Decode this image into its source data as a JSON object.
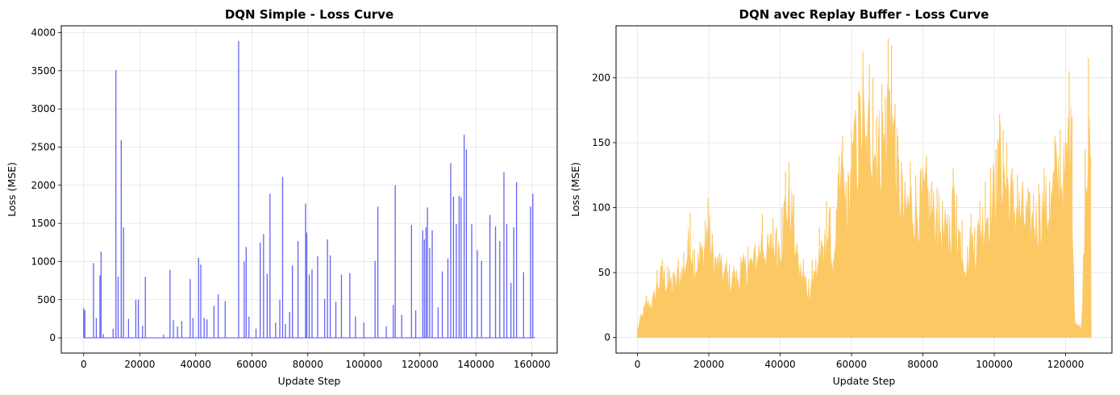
{
  "chart_data": [
    {
      "type": "line",
      "title": "DQN Simple - Loss Curve",
      "xlabel": "Update Step",
      "ylabel": "Loss (MSE)",
      "xlim": [
        -8000,
        169000
      ],
      "ylim": [
        -200,
        4090
      ],
      "xticks": [
        0,
        20000,
        40000,
        60000,
        80000,
        100000,
        120000,
        140000,
        160000
      ],
      "xtick_labels": [
        "0",
        "20000",
        "40000",
        "60000",
        "80000",
        "100000",
        "120000",
        "140000",
        "160000"
      ],
      "yticks": [
        0,
        500,
        1000,
        1500,
        2000,
        2500,
        3000,
        3500,
        4000
      ],
      "ytick_labels": [
        "0",
        "500",
        "1000",
        "1500",
        "2000",
        "2500",
        "3000",
        "3500",
        "4000"
      ],
      "grid": true,
      "series": [
        {
          "color": "#6464f5",
          "x_max": 161000,
          "spikes": [
            [
              0,
              390
            ],
            [
              400,
              360
            ],
            [
              3500,
              980
            ],
            [
              4500,
              260
            ],
            [
              5800,
              820
            ],
            [
              6200,
              1130
            ],
            [
              7000,
              50
            ],
            [
              10500,
              120
            ],
            [
              11500,
              3510
            ],
            [
              12300,
              800
            ],
            [
              13400,
              2590
            ],
            [
              14200,
              1450
            ],
            [
              16000,
              250
            ],
            [
              18600,
              500
            ],
            [
              19500,
              500
            ],
            [
              21000,
              160
            ],
            [
              22000,
              800
            ],
            [
              28500,
              40
            ],
            [
              30800,
              890
            ],
            [
              32000,
              230
            ],
            [
              33500,
              150
            ],
            [
              35000,
              220
            ],
            [
              38000,
              770
            ],
            [
              39000,
              260
            ],
            [
              41000,
              1050
            ],
            [
              41800,
              960
            ],
            [
              43000,
              260
            ],
            [
              44000,
              240
            ],
            [
              46500,
              420
            ],
            [
              48000,
              570
            ],
            [
              50500,
              480
            ],
            [
              55300,
              3890
            ],
            [
              57300,
              1000
            ],
            [
              58000,
              1190
            ],
            [
              59000,
              280
            ],
            [
              61500,
              120
            ],
            [
              63000,
              1250
            ],
            [
              64200,
              1360
            ],
            [
              65500,
              840
            ],
            [
              66500,
              1890
            ],
            [
              68500,
              200
            ],
            [
              70000,
              500
            ],
            [
              71000,
              2110
            ],
            [
              72000,
              180
            ],
            [
              73500,
              340
            ],
            [
              74500,
              950
            ],
            [
              76500,
              1270
            ],
            [
              79200,
              1760
            ],
            [
              79600,
              1380
            ],
            [
              80500,
              830
            ],
            [
              81500,
              900
            ],
            [
              83500,
              1070
            ],
            [
              86000,
              510
            ],
            [
              87000,
              1290
            ],
            [
              88000,
              1080
            ],
            [
              90000,
              470
            ],
            [
              92000,
              830
            ],
            [
              95000,
              850
            ],
            [
              97000,
              280
            ],
            [
              100000,
              200
            ],
            [
              104000,
              1010
            ],
            [
              105000,
              1720
            ],
            [
              108000,
              150
            ],
            [
              110500,
              430
            ],
            [
              111200,
              2000
            ],
            [
              113500,
              300
            ],
            [
              117000,
              1480
            ],
            [
              118500,
              360
            ],
            [
              121000,
              1410
            ],
            [
              121600,
              1290
            ],
            [
              122200,
              1450
            ],
            [
              122700,
              1710
            ],
            [
              123500,
              1180
            ],
            [
              124400,
              1410
            ],
            [
              126500,
              400
            ],
            [
              128000,
              870
            ],
            [
              130000,
              1040
            ],
            [
              131000,
              2290
            ],
            [
              132000,
              1850
            ],
            [
              133000,
              1490
            ],
            [
              134000,
              1860
            ],
            [
              134700,
              1840
            ],
            [
              135800,
              2660
            ],
            [
              136600,
              2470
            ],
            [
              138500,
              1490
            ],
            [
              140500,
              1150
            ],
            [
              142000,
              1010
            ],
            [
              145000,
              1610
            ],
            [
              147000,
              1460
            ],
            [
              148500,
              1270
            ],
            [
              150000,
              2170
            ],
            [
              151000,
              1490
            ],
            [
              152500,
              720
            ],
            [
              153500,
              1450
            ],
            [
              154500,
              2040
            ],
            [
              157000,
              860
            ],
            [
              159500,
              1720
            ],
            [
              160300,
              1890
            ]
          ]
        }
      ]
    },
    {
      "type": "area",
      "title": "DQN avec Replay Buffer - Loss Curve",
      "xlabel": "Update Step",
      "ylabel": "Loss (MSE)",
      "xlim": [
        -6000,
        133000
      ],
      "ylim": [
        -12,
        240
      ],
      "xticks": [
        0,
        20000,
        40000,
        60000,
        80000,
        100000,
        120000
      ],
      "xtick_labels": [
        "0",
        "20000",
        "40000",
        "60000",
        "80000",
        "100000",
        "120000"
      ],
      "yticks": [
        0,
        50,
        100,
        150,
        200
      ],
      "ytick_labels": [
        "0",
        "50",
        "100",
        "150",
        "200"
      ],
      "grid": true,
      "series": [
        {
          "color": "#fcc864",
          "upper_envelope": [
            [
              0,
              8
            ],
            [
              1000,
              18
            ],
            [
              2500,
              32
            ],
            [
              4500,
              35
            ],
            [
              5500,
              52
            ],
            [
              7000,
              60
            ],
            [
              8500,
              55
            ],
            [
              10000,
              50
            ],
            [
              11500,
              60
            ],
            [
              13000,
              66
            ],
            [
              14800,
              96
            ],
            [
              16000,
              68
            ],
            [
              17500,
              74
            ],
            [
              19000,
              90
            ],
            [
              19800,
              107
            ],
            [
              21000,
              80
            ],
            [
              23000,
              65
            ],
            [
              25000,
              60
            ],
            [
              27000,
              55
            ],
            [
              29000,
              62
            ],
            [
              31000,
              70
            ],
            [
              33000,
              72
            ],
            [
              35000,
              95
            ],
            [
              36500,
              80
            ],
            [
              38000,
              92
            ],
            [
              39000,
              85
            ],
            [
              40500,
              100
            ],
            [
              41500,
              128
            ],
            [
              42500,
              135
            ],
            [
              43800,
              110
            ],
            [
              45000,
              65
            ],
            [
              46500,
              60
            ],
            [
              48000,
              45
            ],
            [
              49000,
              60
            ],
            [
              50000,
              60
            ],
            [
              51000,
              85
            ],
            [
              52000,
              70
            ],
            [
              53000,
              105
            ],
            [
              54000,
              100
            ],
            [
              55000,
              60
            ],
            [
              56500,
              140
            ],
            [
              57500,
              155
            ],
            [
              58500,
              120
            ],
            [
              60000,
              160
            ],
            [
              61000,
              175
            ],
            [
              62000,
              190
            ],
            [
              63200,
              220
            ],
            [
              64200,
              155
            ],
            [
              65000,
              210
            ],
            [
              66000,
              200
            ],
            [
              67000,
              170
            ],
            [
              68500,
              195
            ],
            [
              69500,
              185
            ],
            [
              70300,
              230
            ],
            [
              71200,
              225
            ],
            [
              72200,
              180
            ],
            [
              73000,
              155
            ],
            [
              74000,
              135
            ],
            [
              75000,
              120
            ],
            [
              76500,
              135
            ],
            [
              78000,
              125
            ],
            [
              79500,
              130
            ],
            [
              81000,
              140
            ],
            [
              82500,
              120
            ],
            [
              84000,
              115
            ],
            [
              85500,
              105
            ],
            [
              87000,
              95
            ],
            [
              88500,
              130
            ],
            [
              89500,
              110
            ],
            [
              91000,
              90
            ],
            [
              92500,
              70
            ],
            [
              93500,
              95
            ],
            [
              94500,
              85
            ],
            [
              96000,
              105
            ],
            [
              97500,
              120
            ],
            [
              99000,
              130
            ],
            [
              100500,
              145
            ],
            [
              101500,
              172
            ],
            [
              102500,
              160
            ],
            [
              103500,
              150
            ],
            [
              105000,
              130
            ],
            [
              106500,
              125
            ],
            [
              108000,
              120
            ],
            [
              109500,
              115
            ],
            [
              111000,
              110
            ],
            [
              112500,
              118
            ],
            [
              114000,
              130
            ],
            [
              115500,
              120
            ],
            [
              117000,
              155
            ],
            [
              118500,
              160
            ],
            [
              120000,
              150
            ],
            [
              121000,
              205
            ],
            [
              121800,
              170
            ],
            [
              122500,
              20
            ],
            [
              123500,
              10
            ],
            [
              124500,
              12
            ],
            [
              125500,
              145
            ],
            [
              126400,
              215
            ],
            [
              127000,
              140
            ],
            [
              127200,
              0
            ]
          ]
        }
      ]
    }
  ]
}
